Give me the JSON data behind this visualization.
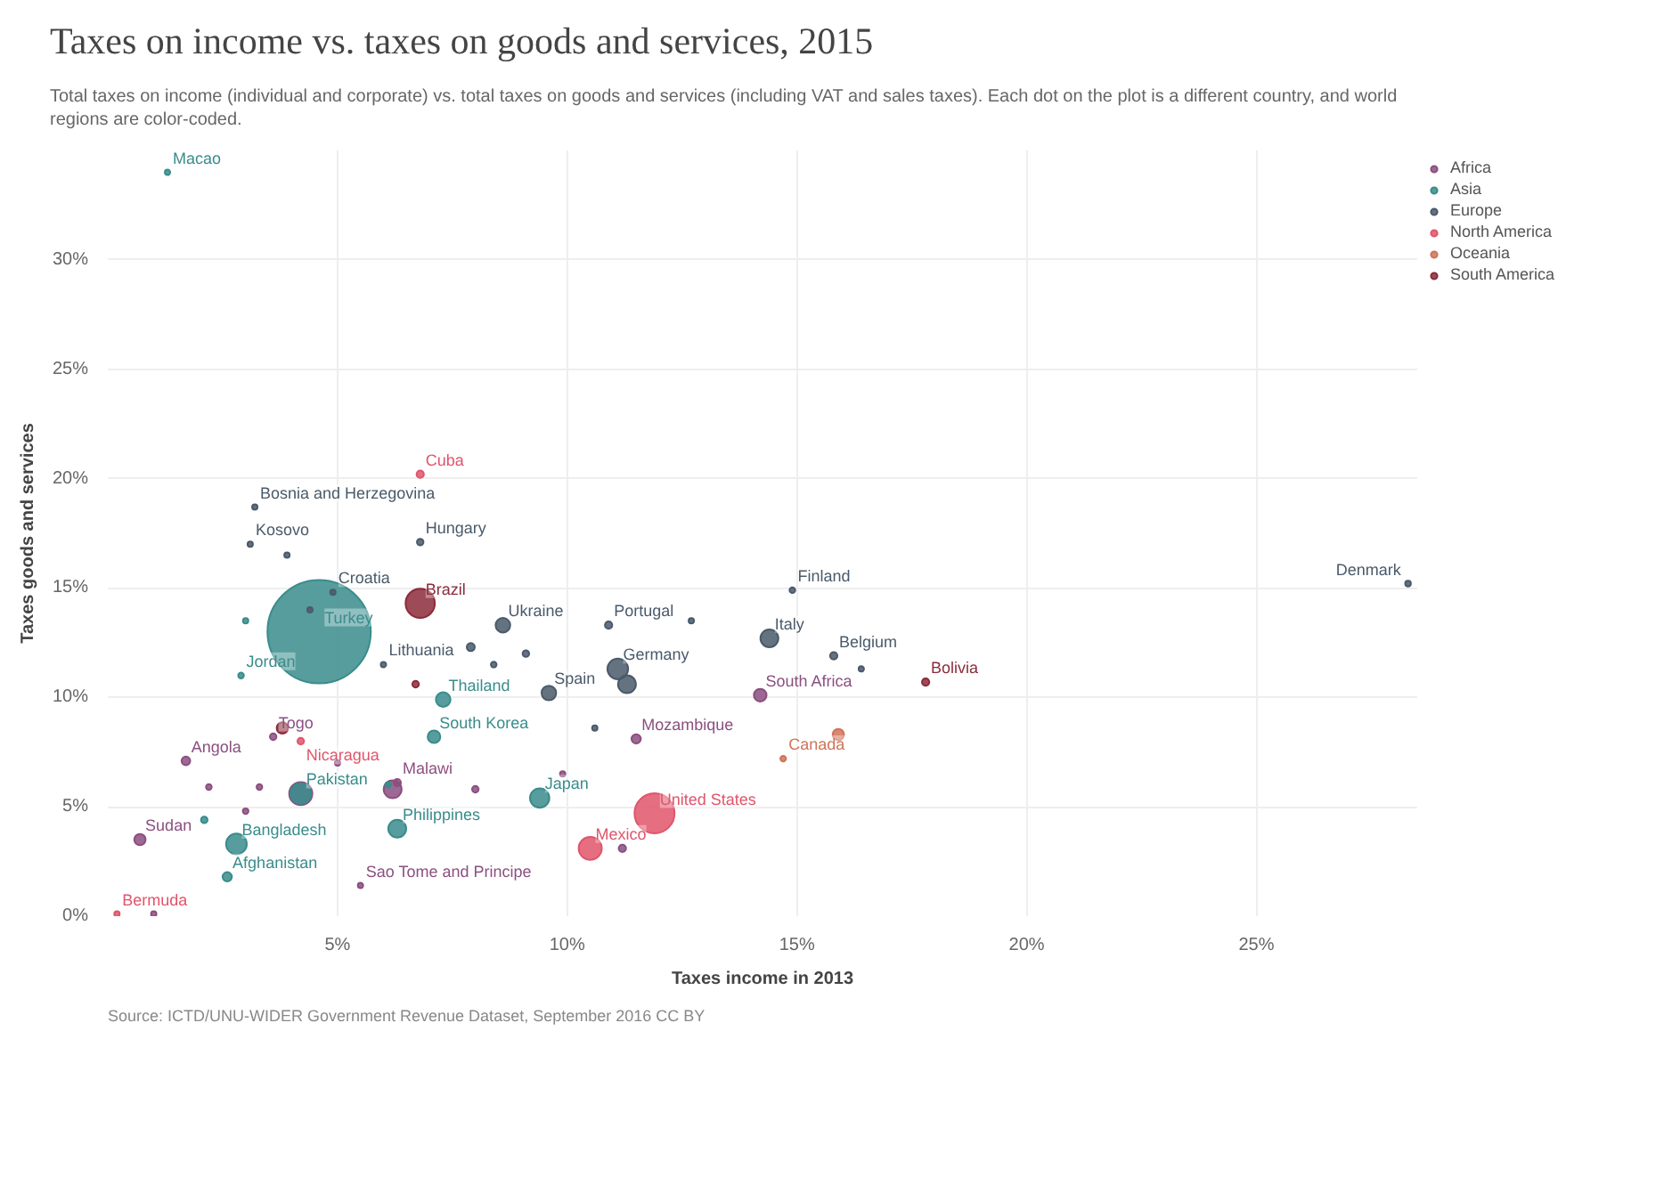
{
  "chart_data": {
    "type": "bubble",
    "title": "Taxes on income vs. taxes on goods and services, 2015",
    "subtitle": "Total taxes on income (individual and corporate) vs. total taxes on goods and services (including VAT and sales taxes). Each dot on the plot is a different country, and world regions are color-coded.",
    "xlabel": "Taxes income in 2013",
    "ylabel": "Taxes goods and services",
    "xlim": [
      0,
      28.5
    ],
    "ylim": [
      0,
      35
    ],
    "xticks": [
      {
        "value": 5,
        "label": "5%"
      },
      {
        "value": 10,
        "label": "10%"
      },
      {
        "value": 15,
        "label": "15%"
      },
      {
        "value": 20,
        "label": "20%"
      },
      {
        "value": 25,
        "label": "25%"
      }
    ],
    "yticks": [
      {
        "value": 0,
        "label": "0%"
      },
      {
        "value": 5,
        "label": "5%"
      },
      {
        "value": 10,
        "label": "10%"
      },
      {
        "value": 15,
        "label": "15%"
      },
      {
        "value": 20,
        "label": "20%"
      },
      {
        "value": 25,
        "label": "25%"
      },
      {
        "value": 30,
        "label": "30%"
      }
    ],
    "grid": true,
    "legend": "top right",
    "marker": "circle",
    "series": [
      {
        "name": "Africa",
        "color": "#8b4f80",
        "x": [
          14.2,
          11.5,
          3.6,
          1.7,
          6.3,
          0.7,
          5.5,
          4.2,
          6.2,
          3.0,
          8.0,
          2.2,
          1.0,
          11.2,
          9.9,
          5.0,
          3.3
        ],
        "values": [
          10.1,
          8.1,
          8.2,
          7.1,
          6.1,
          3.5,
          1.4,
          5.6,
          5.8,
          4.8,
          5.8,
          5.9,
          0.1,
          3.1,
          6.5,
          7.0,
          5.9
        ],
        "sizes": [
          0.015,
          0.008,
          0.004,
          0.007,
          0.005,
          0.012,
          0.001,
          0.05,
          0.03,
          0.003,
          0.004,
          0.003,
          0.002,
          0.005,
          0.002,
          0.002,
          0.003
        ]
      },
      {
        "name": "Asia",
        "color": "#3a8c8c",
        "x": [
          1.3,
          4.6,
          2.9,
          7.3,
          7.1,
          4.2,
          9.4,
          6.3,
          2.8,
          2.6,
          6.1,
          3.0,
          2.1
        ],
        "values": [
          34.0,
          13.0,
          11.0,
          9.9,
          8.2,
          5.6,
          5.4,
          4.0,
          3.3,
          1.8,
          6.0,
          13.5,
          4.4
        ],
        "sizes": [
          0.001,
          1.0,
          0.003,
          0.02,
          0.015,
          0.04,
          0.035,
          0.03,
          0.04,
          0.008,
          0.003,
          0.002,
          0.004
        ]
      },
      {
        "name": "Europe",
        "color": "#4a5a6a",
        "x": [
          3.2,
          3.1,
          6.8,
          14.9,
          28.3,
          4.9,
          8.6,
          10.9,
          14.4,
          15.8,
          6.0,
          9.6,
          11.1,
          11.3,
          7.9,
          8.4,
          12.7,
          16.4,
          3.9,
          9.1,
          10.6,
          4.4
        ],
        "values": [
          18.7,
          17.0,
          17.1,
          14.9,
          15.2,
          14.8,
          13.3,
          13.3,
          12.7,
          11.9,
          11.5,
          10.2,
          11.3,
          10.6,
          12.3,
          11.5,
          13.5,
          11.3,
          16.5,
          12.0,
          8.6,
          14.0
        ],
        "sizes": [
          0.002,
          0.001,
          0.004,
          0.003,
          0.003,
          0.002,
          0.02,
          0.005,
          0.03,
          0.005,
          0.002,
          0.02,
          0.04,
          0.03,
          0.006,
          0.003,
          0.002,
          0.002,
          0.002,
          0.004,
          0.002,
          0.002
        ]
      },
      {
        "name": "North America",
        "color": "#e0556b",
        "x": [
          6.8,
          4.2,
          11.9,
          10.5,
          0.2
        ],
        "values": [
          20.2,
          8.0,
          4.7,
          3.1,
          0.1
        ],
        "sizes": [
          0.005,
          0.004,
          0.15,
          0.05,
          0.001
        ]
      },
      {
        "name": "Oceania",
        "color": "#d0745a",
        "x": [
          14.7,
          15.9
        ],
        "values": [
          7.2,
          8.3
        ],
        "sizes": [
          0.003,
          0.012
        ]
      },
      {
        "name": "South America",
        "color": "#8b2b3a",
        "x": [
          6.8,
          17.8,
          3.8,
          6.7
        ],
        "values": [
          14.3,
          10.7,
          8.6,
          10.6
        ],
        "sizes": [
          0.08,
          0.005,
          0.012,
          0.004
        ]
      }
    ],
    "annotations": [
      {
        "text": "Macao",
        "x": 1.3,
        "y": 34.0
      },
      {
        "text": "Cuba",
        "x": 6.8,
        "y": 20.2
      },
      {
        "text": "Bosnia and Herzegovina",
        "x": 3.2,
        "y": 18.7
      },
      {
        "text": "Kosovo",
        "x": 3.1,
        "y": 17.0
      },
      {
        "text": "Hungary",
        "x": 6.8,
        "y": 17.1
      },
      {
        "text": "Finland",
        "x": 14.9,
        "y": 14.9
      },
      {
        "text": "Denmark",
        "x": 28.3,
        "y": 15.2
      },
      {
        "text": "Croatia",
        "x": 4.9,
        "y": 14.8
      },
      {
        "text": "Brazil",
        "x": 6.8,
        "y": 14.3
      },
      {
        "text": "Ukraine",
        "x": 8.6,
        "y": 13.3
      },
      {
        "text": "Portugal",
        "x": 10.9,
        "y": 13.3
      },
      {
        "text": "Italy",
        "x": 14.4,
        "y": 12.7
      },
      {
        "text": "Belgium",
        "x": 15.8,
        "y": 11.9
      },
      {
        "text": "Bolivia",
        "x": 17.8,
        "y": 10.7
      },
      {
        "text": "Turkey",
        "x": 4.6,
        "y": 13.0
      },
      {
        "text": "Jordan",
        "x": 2.9,
        "y": 11.0
      },
      {
        "text": "Lithuania",
        "x": 6.0,
        "y": 11.5
      },
      {
        "text": "Thailand",
        "x": 7.3,
        "y": 9.9
      },
      {
        "text": "Spain",
        "x": 9.6,
        "y": 10.2
      },
      {
        "text": "Germany",
        "x": 11.1,
        "y": 11.3
      },
      {
        "text": "South Africa",
        "x": 14.2,
        "y": 10.1
      },
      {
        "text": "South Korea",
        "x": 7.1,
        "y": 8.2
      },
      {
        "text": "Mozambique",
        "x": 11.5,
        "y": 8.1
      },
      {
        "text": "Canada",
        "x": 14.7,
        "y": 7.2
      },
      {
        "text": "Togo",
        "x": 3.6,
        "y": 8.2
      },
      {
        "text": "Nicaragua",
        "x": 4.2,
        "y": 8.0
      },
      {
        "text": "Angola",
        "x": 1.7,
        "y": 7.1
      },
      {
        "text": "Pakistan",
        "x": 4.2,
        "y": 5.6
      },
      {
        "text": "Malawi",
        "x": 6.3,
        "y": 6.1
      },
      {
        "text": "Japan",
        "x": 9.4,
        "y": 5.4
      },
      {
        "text": "United States",
        "x": 11.9,
        "y": 4.7
      },
      {
        "text": "Mexico",
        "x": 10.5,
        "y": 3.1
      },
      {
        "text": "Philippines",
        "x": 6.3,
        "y": 4.0
      },
      {
        "text": "Sudan",
        "x": 0.7,
        "y": 3.5
      },
      {
        "text": "Bangladesh",
        "x": 2.8,
        "y": 3.3
      },
      {
        "text": "Afghanistan",
        "x": 2.6,
        "y": 1.8
      },
      {
        "text": "Sao Tome and Principe",
        "x": 5.5,
        "y": 1.4
      },
      {
        "text": "Bermuda",
        "x": 0.2,
        "y": 0.1
      },
      "Source: ICTD/UNU-WIDER Government Revenue Dataset, September 2016",
      "CC BY"
    ]
  }
}
